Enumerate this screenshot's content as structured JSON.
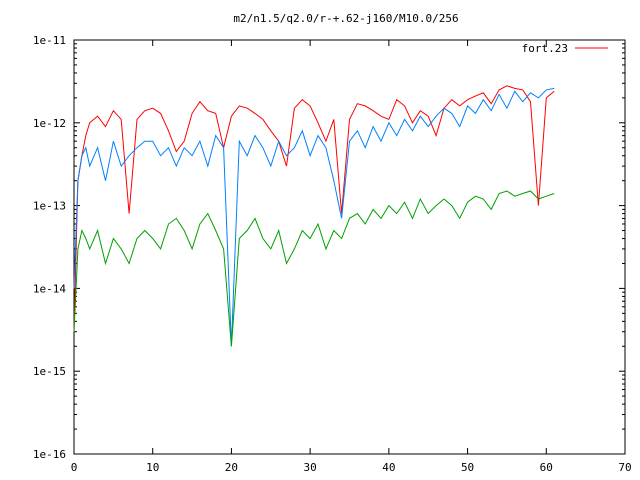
{
  "chart_data": {
    "type": "line",
    "title": "m2/n1.5/q2.0/r-+.62-j160/M10.0/256",
    "xlabel": "",
    "ylabel": "",
    "xlim": [
      0,
      70
    ],
    "ylim": [
      1e-16,
      1e-11
    ],
    "yscale": "log",
    "grid": false,
    "legend_position": "top-right",
    "x_ticks": [
      0,
      10,
      20,
      30,
      40,
      50,
      60,
      70
    ],
    "x_tick_labels": [
      "0",
      "10",
      "20",
      "30",
      "40",
      "50",
      "60",
      "70"
    ],
    "y_ticks": [
      1e-16,
      1e-15,
      1e-14,
      1e-13,
      1e-12,
      1e-11
    ],
    "y_tick_labels": [
      "1e-16",
      "1e-15",
      "1e-14",
      "1e-13",
      "1e-12",
      "1e-11"
    ],
    "x": [
      0.0,
      0.5,
      1.0,
      1.5,
      2.0,
      3.0,
      4.0,
      5.0,
      6.0,
      7.0,
      8.0,
      9.0,
      10.0,
      11.0,
      12.0,
      13.0,
      14.0,
      15.0,
      16.0,
      17.0,
      18.0,
      19.0,
      20.0,
      21.0,
      22.0,
      23.0,
      24.0,
      25.0,
      26.0,
      27.0,
      28.0,
      29.0,
      30.0,
      31.0,
      32.0,
      33.0,
      34.0,
      35.0,
      36.0,
      37.0,
      38.0,
      39.0,
      40.0,
      41.0,
      42.0,
      43.0,
      44.0,
      45.0,
      46.0,
      47.0,
      48.0,
      49.0,
      50.0,
      51.0,
      52.0,
      53.0,
      54.0,
      55.0,
      56.0,
      57.0,
      58.0,
      59.0,
      60.0,
      61.0
    ],
    "series": [
      {
        "name": "fort.23",
        "color": "#ff0000",
        "values": [
          3e-15,
          2e-13,
          4e-13,
          7e-13,
          1e-12,
          1.2e-12,
          9e-13,
          1.4e-12,
          1.1e-12,
          8e-14,
          1.1e-12,
          1.4e-12,
          1.5e-12,
          1.3e-12,
          8e-13,
          4.5e-13,
          6e-13,
          1.3e-12,
          1.8e-12,
          1.4e-12,
          1.3e-12,
          5e-13,
          1.2e-12,
          1.6e-12,
          1.5e-12,
          1.3e-12,
          1.1e-12,
          8e-13,
          6e-13,
          3e-13,
          1.5e-12,
          1.9e-12,
          1.6e-12,
          1e-12,
          6e-13,
          1.1e-12,
          8e-14,
          1.1e-12,
          1.7e-12,
          1.6e-12,
          1.4e-12,
          1.2e-12,
          1.1e-12,
          1.9e-12,
          1.6e-12,
          1e-12,
          1.4e-12,
          1.2e-12,
          7e-13,
          1.5e-12,
          1.9e-12,
          1.6e-12,
          1.9e-12,
          2.1e-12,
          2.3e-12,
          1.7e-12,
          2.5e-12,
          2.8e-12,
          2.6e-12,
          2.5e-12,
          1.8e-12,
          1e-13,
          2e-12,
          2.4e-12
        ]
      },
      {
        "name": "",
        "color": "#0080ff",
        "values": [
          1e-14,
          2e-13,
          4e-13,
          5e-13,
          3e-13,
          5e-13,
          2e-13,
          6e-13,
          3e-13,
          4e-13,
          5e-13,
          6e-13,
          6e-13,
          4e-13,
          5e-13,
          3e-13,
          5e-13,
          4e-13,
          6e-13,
          3e-13,
          7e-13,
          5e-13,
          2e-15,
          6e-13,
          4e-13,
          7e-13,
          5e-13,
          3e-13,
          6e-13,
          4e-13,
          5e-13,
          8e-13,
          4e-13,
          7e-13,
          5e-13,
          2e-13,
          7e-14,
          6e-13,
          8e-13,
          5e-13,
          9e-13,
          6e-13,
          1e-12,
          7e-13,
          1.1e-12,
          8e-13,
          1.2e-12,
          9e-13,
          1.2e-12,
          1.5e-12,
          1.3e-12,
          9e-13,
          1.6e-12,
          1.3e-12,
          1.9e-12,
          1.4e-12,
          2.2e-12,
          1.5e-12,
          2.4e-12,
          1.8e-12,
          2.3e-12,
          2e-12,
          2.5e-12,
          2.6e-12
        ]
      },
      {
        "name": "",
        "color": "#00a000",
        "values": [
          3e-15,
          3e-14,
          5e-14,
          4e-14,
          3e-14,
          5e-14,
          2e-14,
          4e-14,
          3e-14,
          2e-14,
          4e-14,
          5e-14,
          4e-14,
          3e-14,
          6e-14,
          7e-14,
          5e-14,
          3e-14,
          6e-14,
          8e-14,
          5e-14,
          3e-14,
          2e-15,
          4e-14,
          5e-14,
          7e-14,
          4e-14,
          3e-14,
          5e-14,
          2e-14,
          3e-14,
          5e-14,
          4e-14,
          6e-14,
          3e-14,
          5e-14,
          4e-14,
          7e-14,
          8e-14,
          6e-14,
          9e-14,
          7e-14,
          1e-13,
          8e-14,
          1.1e-13,
          7e-14,
          1.2e-13,
          8e-14,
          1e-13,
          1.2e-13,
          1e-13,
          7e-14,
          1.1e-13,
          1.3e-13,
          1.2e-13,
          9e-14,
          1.4e-13,
          1.5e-13,
          1.3e-13,
          1.4e-13,
          1.5e-13,
          1.2e-13,
          1.3e-13,
          1.4e-13
        ]
      }
    ]
  }
}
